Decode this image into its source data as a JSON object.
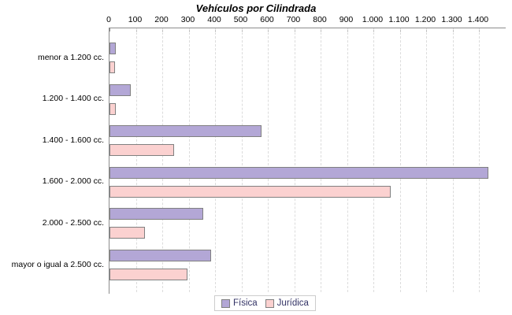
{
  "title": "Vehículos por Cilindrada",
  "chart_data": {
    "type": "bar",
    "orientation": "horizontal",
    "title": "Vehículos por Cilindrada",
    "categories": [
      "menor a 1.200 cc.",
      "1.200 - 1.400 cc.",
      "1.400 - 1.600 cc.",
      "1.600 - 2.000 cc.",
      "2.000 - 2.500 cc.",
      "mayor o igual a 2.500 cc."
    ],
    "series": [
      {
        "name": "Física",
        "color": "#b3a7d6",
        "values": [
          25,
          80,
          575,
          1435,
          355,
          385
        ]
      },
      {
        "name": "Jurídica",
        "color": "#fbd1d0",
        "values": [
          20,
          25,
          245,
          1065,
          135,
          295
        ]
      }
    ],
    "x_axis": {
      "position": "top",
      "min": 0,
      "max": 1400,
      "tick_interval": 100,
      "tick_labels": [
        "0",
        "100",
        "200",
        "300",
        "400",
        "500",
        "600",
        "700",
        "800",
        "900",
        "1.000",
        "1.100",
        "1.200",
        "1.300",
        "1.400"
      ]
    },
    "grid": "vertical-dashed",
    "legend_position": "bottom",
    "colors": {
      "bar_border": "#808080",
      "axis_line": "#8c8c8c",
      "gridline": "#dcdcdc",
      "legend_text": "#333366",
      "title_text": "#000000"
    }
  }
}
